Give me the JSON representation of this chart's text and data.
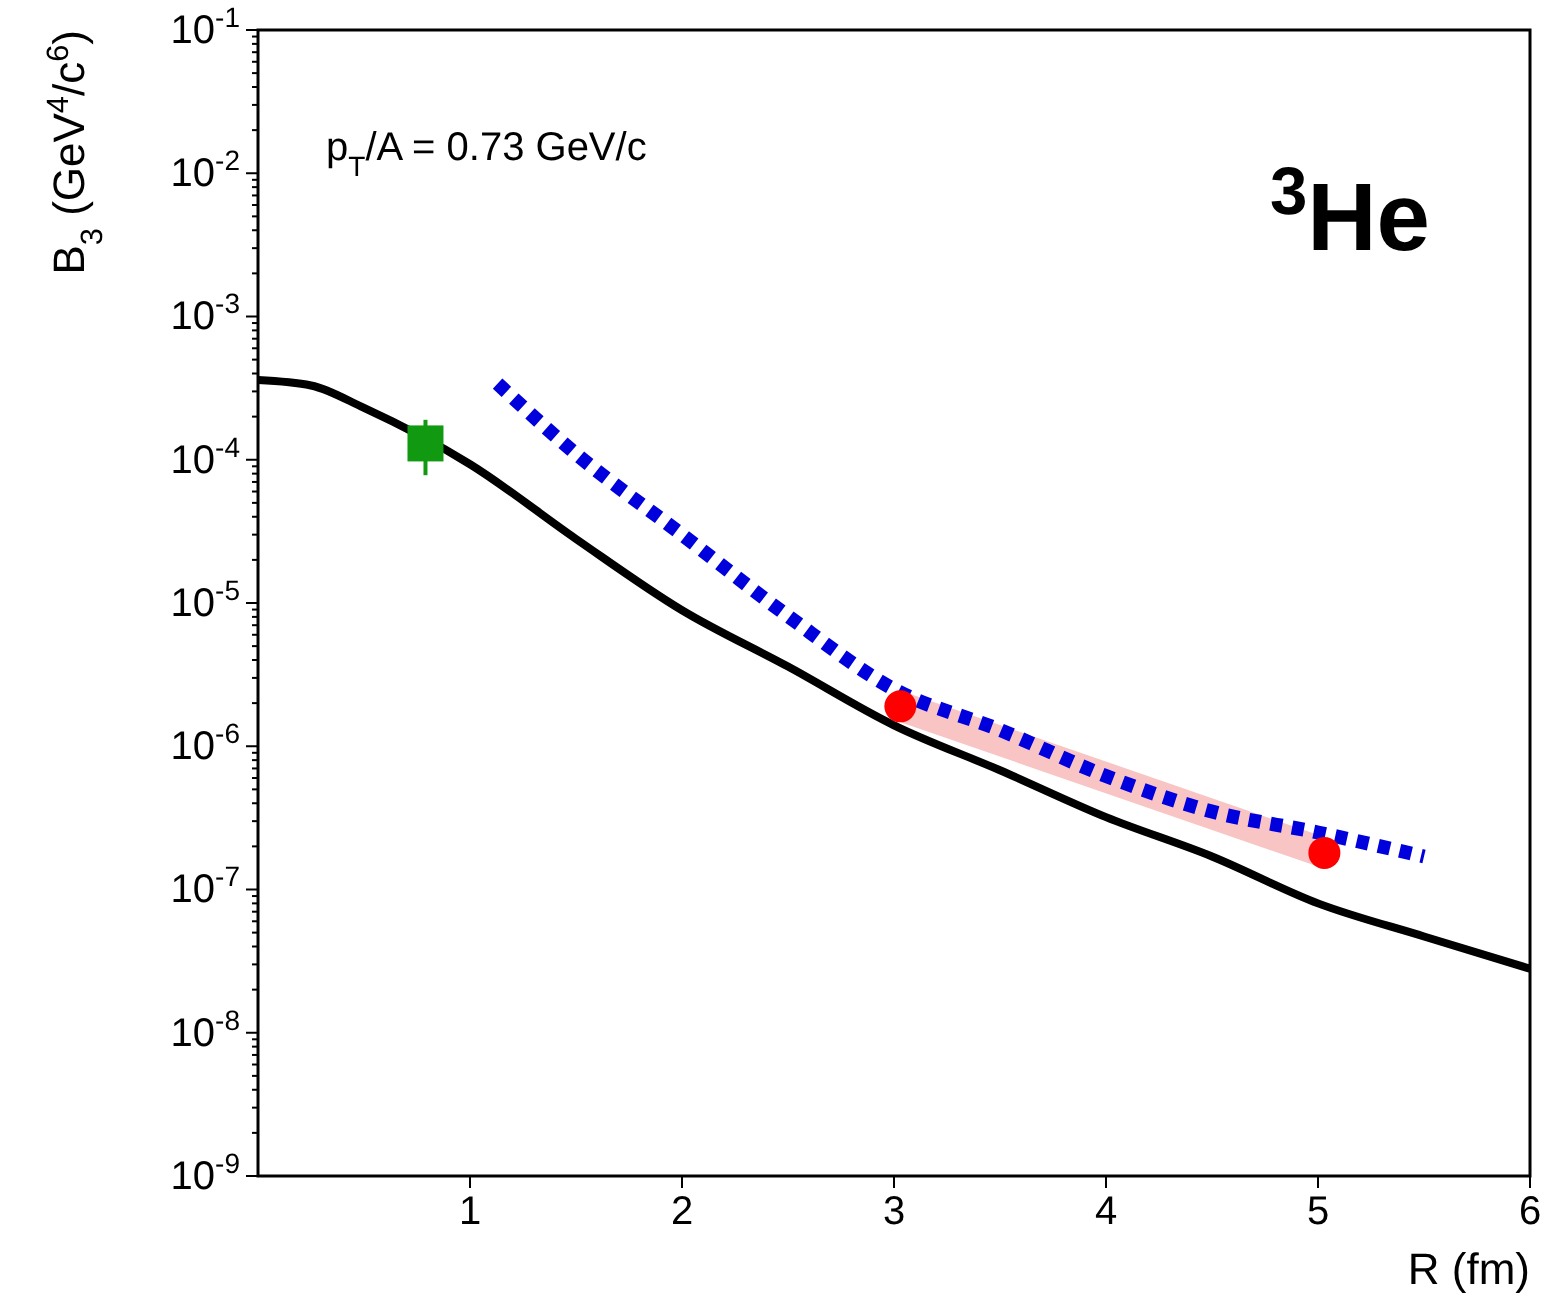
{
  "chart_data": {
    "type": "line",
    "xlabel": "R (fm)",
    "ylabel": "B$_{3}$ (GeV$^{4}$/c$^{6}$)",
    "annotations": [
      "p$_{T}$/A = 0.73 GeV/c",
      "$^{3}$He"
    ],
    "xlim": [
      0,
      6
    ],
    "xticks": [
      1,
      2,
      3,
      4,
      5,
      6
    ],
    "ylim": [
      1e-09,
      0.1
    ],
    "log": "y",
    "yticks": [
      {
        "value": 1e-09,
        "label": "10$^{-9}$"
      },
      {
        "value": 1e-08,
        "label": "10$^{-8}$"
      },
      {
        "value": 1e-07,
        "label": "10$^{-7}$"
      },
      {
        "value": 1e-06,
        "label": "10$^{-6}$"
      },
      {
        "value": 1e-05,
        "label": "10$^{-5}$"
      },
      {
        "value": 0.0001,
        "label": "10$^{-4}$"
      },
      {
        "value": 0.001,
        "label": "10$^{-3}$"
      },
      {
        "value": 0.01,
        "label": "10$^{-2}$"
      },
      {
        "value": 0.1,
        "label": "10$^{-1}$"
      }
    ],
    "grid": false,
    "series": [
      {
        "color": "#f8c4c4",
        "line_style": "solid",
        "x": [
          3.03,
          5.03
        ],
        "values": [
          1.9e-06,
          1.8e-07
        ]
      },
      {
        "color": "#000000",
        "line_style": "solid",
        "x": [
          0,
          0.25,
          0.5,
          1,
          1.5,
          2,
          2.5,
          3,
          3.5,
          4,
          4.5,
          5,
          5.5,
          6
        ],
        "values": [
          0.00036,
          0.00033,
          0.00023,
          9.3e-05,
          2.8e-05,
          8.9e-06,
          3.6e-06,
          1.4e-06,
          6.8e-07,
          3.2e-07,
          1.7e-07,
          8e-08,
          4.7e-08,
          2.8e-08
        ]
      },
      {
        "color": "#0000dd",
        "line_style": "dotted",
        "x": [
          1.13,
          1.5,
          2,
          2.5,
          3,
          3.5,
          4,
          4.5,
          5,
          5.5
        ],
        "values": [
          0.00034,
          0.00011,
          3e-05,
          8.1e-06,
          2.5e-06,
          1.3e-06,
          6.2e-07,
          3.5e-07,
          2.5e-07,
          1.7e-07
        ]
      },
      {
        "type": "scatter",
        "color": "#ff0000",
        "marker": "circle",
        "x": [
          3.03,
          5.03
        ],
        "values": [
          1.9e-06,
          1.8e-07
        ]
      },
      {
        "type": "scatter",
        "color": "#119911",
        "marker": "square",
        "x": [
          0.79
        ],
        "values": [
          0.00013
        ],
        "errors": [
          [
            7.8e-05,
            0.00019
          ]
        ]
      }
    ]
  }
}
